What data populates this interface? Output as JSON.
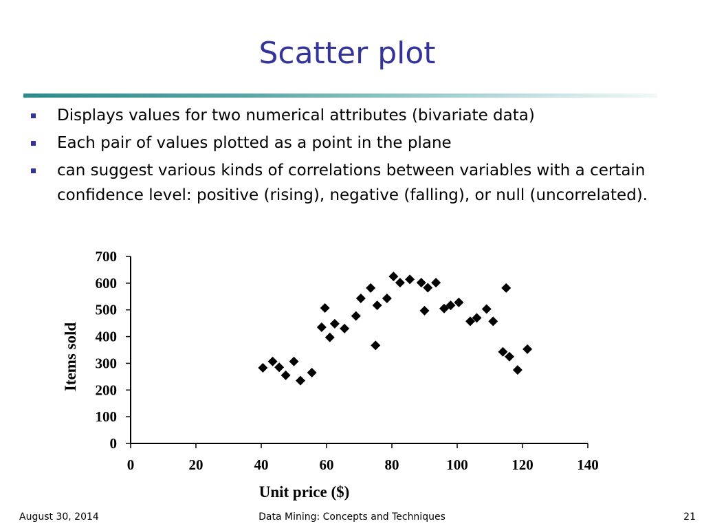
{
  "slide": {
    "title": "Scatter plot",
    "bullets": [
      "Displays values for two numerical attributes (bivariate data)",
      "Each pair of values plotted as a point in the plane",
      "can suggest various kinds of correlations between variables with a certain confidence level: positive (rising), negative (falling), or null (uncorrelated)."
    ],
    "footer": {
      "date": "August 30, 2014",
      "course": "Data Mining: Concepts and Techniques",
      "page": "21"
    },
    "colors": {
      "title": "#333399",
      "bullet": "#333399",
      "marker": "#000000"
    }
  },
  "chart_data": {
    "type": "scatter",
    "xlabel": "Unit price ($)",
    "ylabel": "Items sold",
    "xlim": [
      0,
      140
    ],
    "ylim": [
      0,
      700
    ],
    "xticks": [
      "0",
      "20",
      "40",
      "60",
      "80",
      "100",
      "120",
      "140"
    ],
    "yticks": [
      "0",
      "100",
      "200",
      "300",
      "400",
      "500",
      "600",
      "700"
    ],
    "grid": false,
    "marker": "diamond",
    "points": [
      [
        40.5,
        283
      ],
      [
        43.5,
        307
      ],
      [
        45.5,
        285
      ],
      [
        47.5,
        255
      ],
      [
        50,
        307
      ],
      [
        52,
        235
      ],
      [
        55.5,
        265
      ],
      [
        58.5,
        435
      ],
      [
        59.5,
        507
      ],
      [
        61,
        397
      ],
      [
        62.5,
        448
      ],
      [
        65.5,
        430
      ],
      [
        69,
        477
      ],
      [
        70.5,
        543
      ],
      [
        73.5,
        582
      ],
      [
        75,
        367
      ],
      [
        75.5,
        517
      ],
      [
        78.5,
        543
      ],
      [
        80.5,
        625
      ],
      [
        82.5,
        602
      ],
      [
        85.5,
        614
      ],
      [
        89,
        602
      ],
      [
        90,
        497
      ],
      [
        91,
        583
      ],
      [
        93.5,
        602
      ],
      [
        96,
        505
      ],
      [
        98,
        517
      ],
      [
        100.5,
        528
      ],
      [
        104,
        457
      ],
      [
        106,
        470
      ],
      [
        109,
        503
      ],
      [
        111,
        457
      ],
      [
        114,
        343
      ],
      [
        115,
        582
      ],
      [
        116,
        325
      ],
      [
        118.5,
        275
      ],
      [
        121.5,
        353
      ]
    ]
  }
}
